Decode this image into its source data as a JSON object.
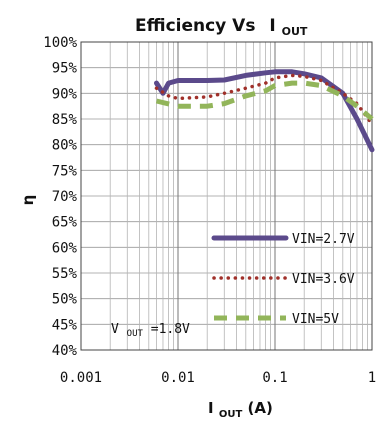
{
  "chart_data": {
    "type": "line",
    "title": {
      "main": "Efficiency Vs",
      "var_main": "I",
      "var_sub": "OUT"
    },
    "xlabel": {
      "main": "I",
      "sub": "OUT",
      "unit": " (A)"
    },
    "ylabel": "η",
    "xscale": "log",
    "xlim": [
      0.001,
      1
    ],
    "ylim": [
      40,
      100
    ],
    "x_ticks": [
      0.001,
      0.01,
      0.1,
      1
    ],
    "x_tick_labels": [
      "0.001",
      "0.01",
      "0.1",
      "1"
    ],
    "y_ticks": [
      40,
      45,
      50,
      55,
      60,
      65,
      70,
      75,
      80,
      85,
      90,
      95,
      100
    ],
    "y_tick_labels": [
      "40%",
      "45%",
      "50%",
      "55%",
      "60%",
      "65%",
      "70%",
      "75%",
      "80%",
      "85%",
      "90%",
      "95%",
      "100%"
    ],
    "grid": true,
    "legend_position": "lower-right (inside plot)",
    "annotation": {
      "main": "V",
      "sub": "OUT",
      "rest": "=1.8V"
    },
    "series": [
      {
        "name": "VIN=2.7V",
        "color": "#5b4a8b",
        "style": "solid",
        "points": [
          [
            0.006,
            92
          ],
          [
            0.007,
            90
          ],
          [
            0.008,
            92
          ],
          [
            0.01,
            92.5
          ],
          [
            0.02,
            92.5
          ],
          [
            0.03,
            92.6
          ],
          [
            0.05,
            93.5
          ],
          [
            0.08,
            94
          ],
          [
            0.1,
            94.2
          ],
          [
            0.15,
            94.2
          ],
          [
            0.2,
            93.8
          ],
          [
            0.3,
            93
          ],
          [
            0.5,
            90
          ],
          [
            0.7,
            85
          ],
          [
            1.0,
            79
          ]
        ]
      },
      {
        "name": "VIN=3.6V",
        "color": "#a0302a",
        "style": "dotted",
        "points": [
          [
            0.006,
            91
          ],
          [
            0.008,
            89.5
          ],
          [
            0.01,
            89
          ],
          [
            0.02,
            89.3
          ],
          [
            0.03,
            90
          ],
          [
            0.05,
            91
          ],
          [
            0.08,
            92
          ],
          [
            0.1,
            93
          ],
          [
            0.15,
            93.5
          ],
          [
            0.2,
            93.3
          ],
          [
            0.3,
            92.5
          ],
          [
            0.5,
            90
          ],
          [
            0.7,
            88
          ],
          [
            1.0,
            84
          ]
        ]
      },
      {
        "name": "VIN=5V",
        "color": "#92b55a",
        "style": "dashed",
        "points": [
          [
            0.006,
            88.5
          ],
          [
            0.01,
            87.5
          ],
          [
            0.02,
            87.5
          ],
          [
            0.03,
            88
          ],
          [
            0.05,
            89.5
          ],
          [
            0.08,
            90.5
          ],
          [
            0.1,
            91.5
          ],
          [
            0.15,
            92
          ],
          [
            0.2,
            92
          ],
          [
            0.3,
            91.5
          ],
          [
            0.5,
            89.5
          ],
          [
            0.7,
            87.5
          ],
          [
            1.0,
            85
          ]
        ]
      }
    ]
  }
}
